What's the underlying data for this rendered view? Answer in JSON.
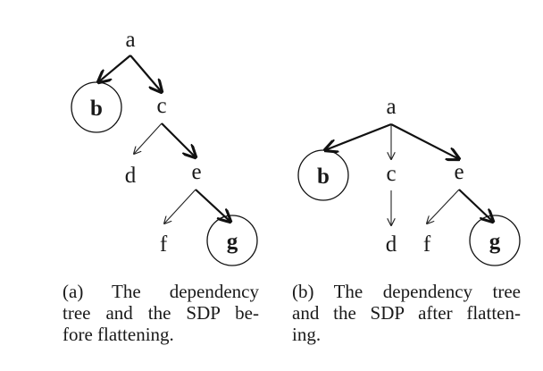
{
  "figures": [
    {
      "id": "a",
      "nodes": {
        "a": "a",
        "b": "b",
        "c": "c",
        "d": "d",
        "e": "e",
        "f": "f",
        "g": "g"
      },
      "caption_lines": [
        "(a) The dependency",
        "tree and the SDP be-",
        "fore flattening."
      ]
    },
    {
      "id": "b",
      "nodes": {
        "a": "a",
        "b": "b",
        "c": "c",
        "d": "d",
        "e": "e",
        "f": "f",
        "g": "g"
      },
      "caption_lines": [
        "(b) The dependency tree",
        "and the SDP after flatten-",
        "ing."
      ]
    }
  ]
}
